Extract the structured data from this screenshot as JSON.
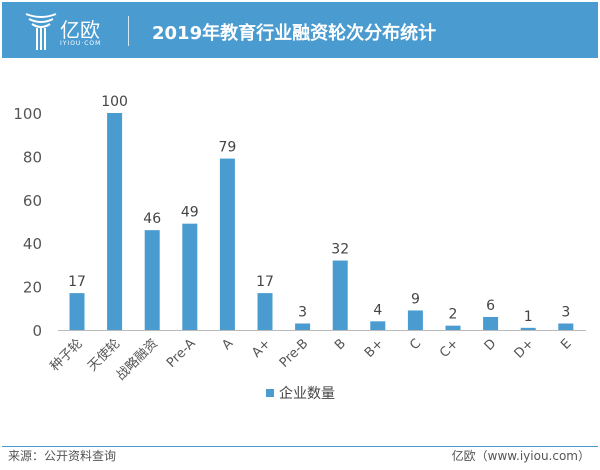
{
  "header": {
    "logo_cn": "亿欧",
    "logo_en": "IYIOU·COM",
    "title": "2019年教育行业融资轮次分布统计"
  },
  "colors": {
    "header": "#4a9bd0",
    "bar": "#4a9bd0"
  },
  "chart_data": {
    "type": "bar",
    "title": "2019年教育行业融资轮次分布统计",
    "categories": [
      "种子轮",
      "天使轮",
      "战略融资",
      "Pre-A",
      "A",
      "A+",
      "Pre-B",
      "B",
      "B+",
      "C",
      "C+",
      "D",
      "D+",
      "E"
    ],
    "series": [
      {
        "name": "企业数量",
        "values": [
          17,
          100,
          46,
          49,
          79,
          17,
          3,
          32,
          4,
          9,
          2,
          6,
          1,
          3
        ]
      }
    ],
    "yticks": [
      0,
      20,
      40,
      60,
      80,
      100
    ],
    "ylim": [
      0,
      100
    ],
    "grid": false,
    "legend": "bottom"
  },
  "footer": {
    "source": "来源：公开资料查询",
    "site": "亿欧（www.iyiou.com）"
  }
}
